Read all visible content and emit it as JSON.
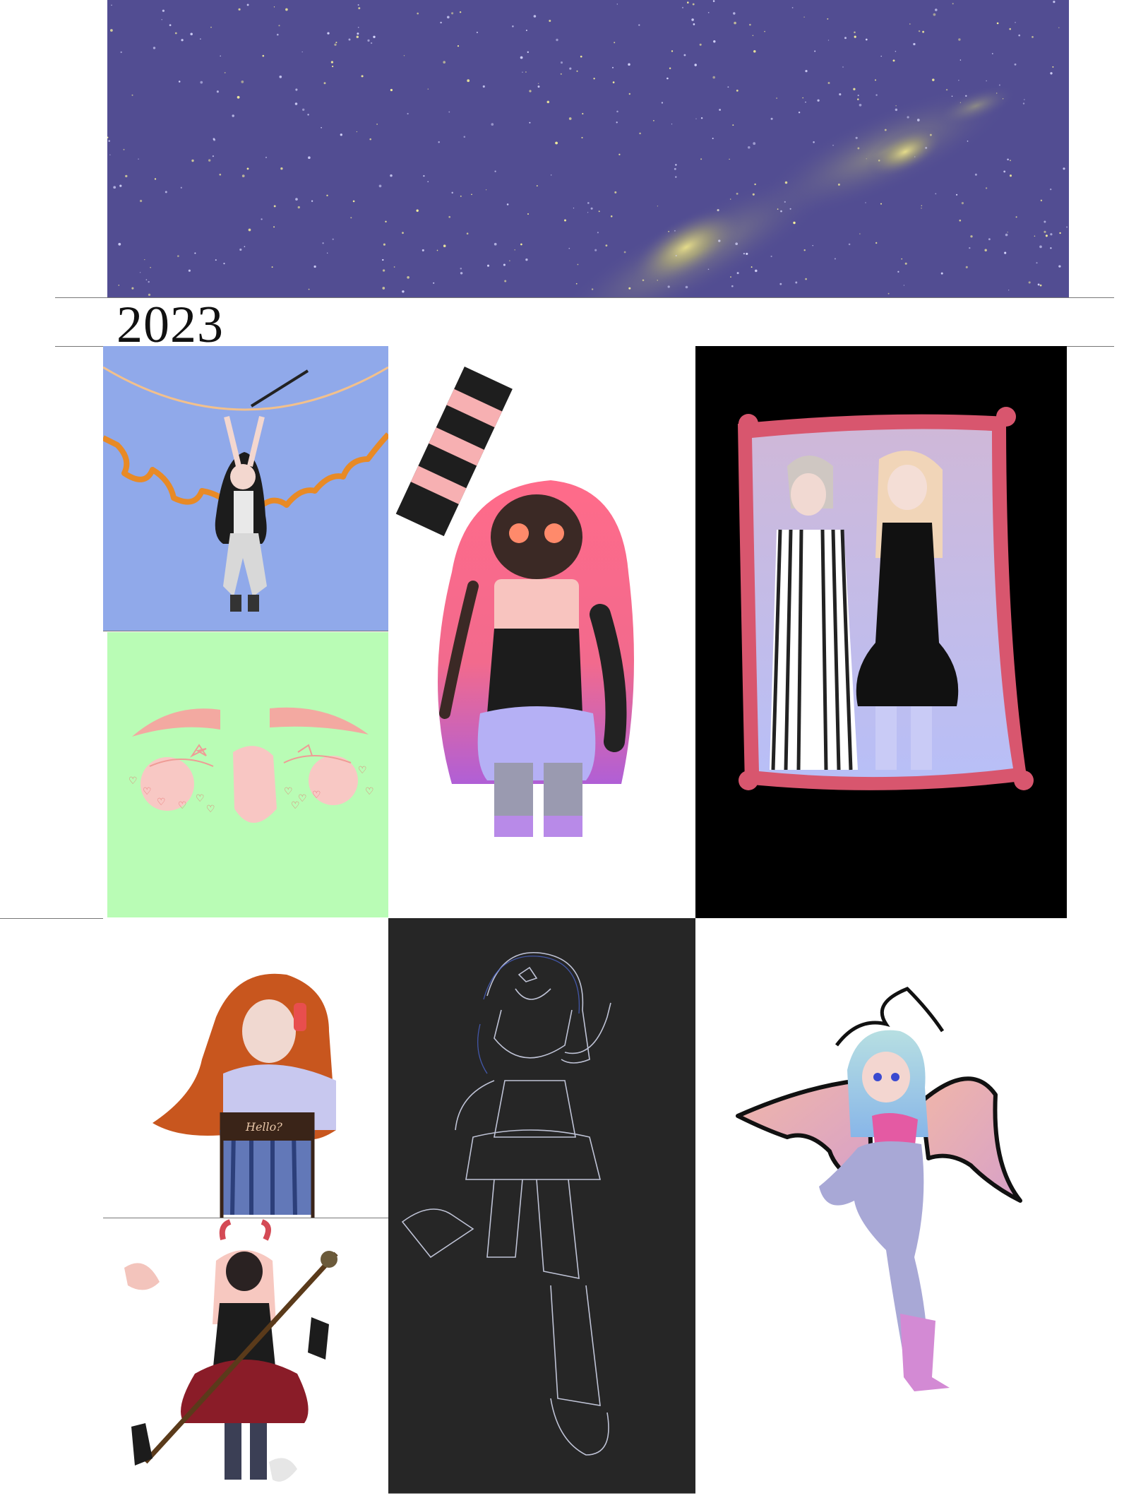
{
  "header": {
    "banner": "starry night sky banner",
    "year": "2023"
  },
  "gallery": {
    "artworks": [
      {
        "name": "artwork-sword-girl",
        "bg": "#90a9ea"
      },
      {
        "name": "artwork-face-closeup",
        "bg": "#b9fcb5"
      },
      {
        "name": "artwork-chainsaw-girl",
        "bg": "#ffffff"
      },
      {
        "name": "artwork-framed-couple",
        "bg": "#000000"
      },
      {
        "name": "artwork-orange-hair-girl",
        "bg": "#ffffff"
      },
      {
        "name": "artwork-lineart-girl",
        "bg": "#262626"
      },
      {
        "name": "artwork-horned-girl",
        "bg": "#ffffff"
      },
      {
        "name": "artwork-bat-wing-girl",
        "bg": "#ffffff"
      }
    ],
    "sign_text": "Hello?"
  }
}
